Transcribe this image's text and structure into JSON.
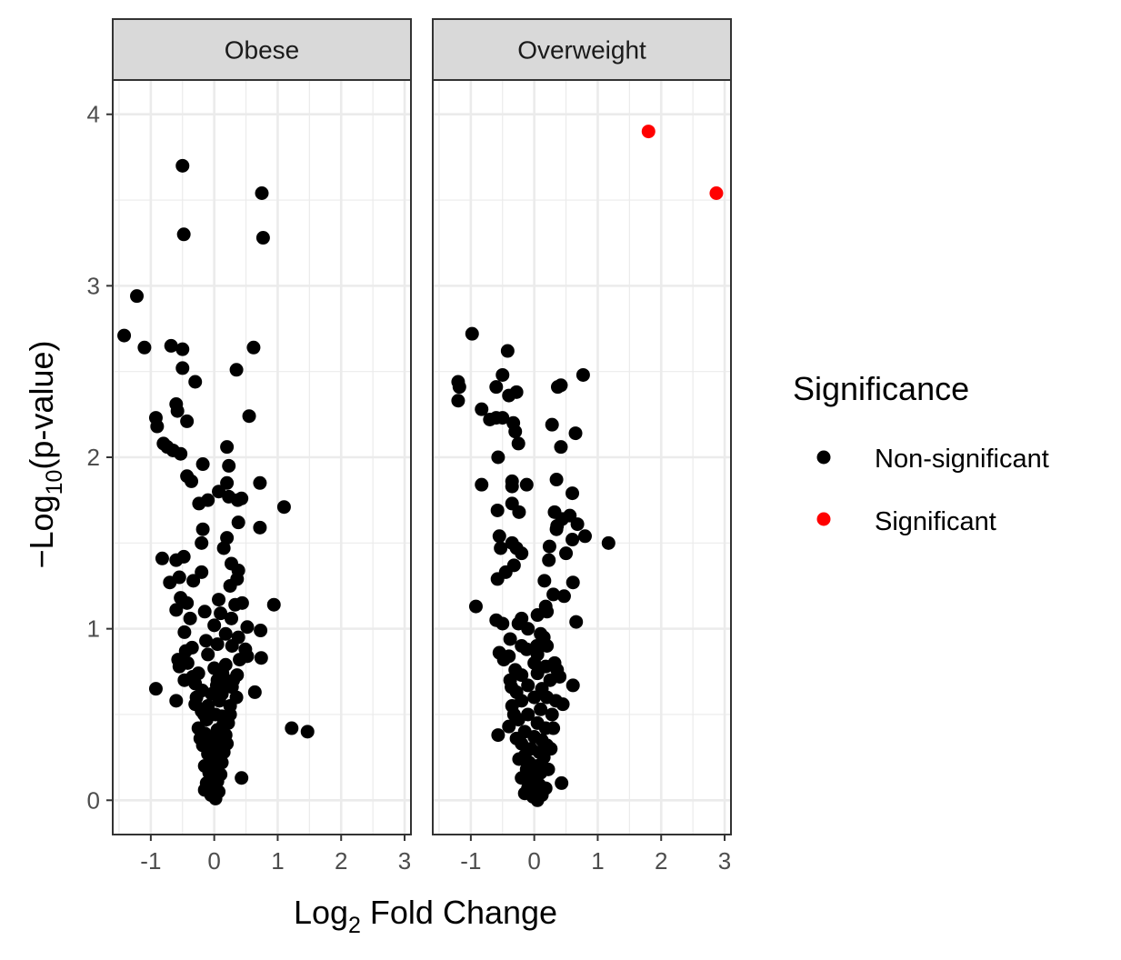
{
  "chart_data": {
    "type": "scatter",
    "title": "",
    "xlabel": {
      "base": "Log",
      "sub": "2",
      "rest": " Fold Change"
    },
    "ylabel": {
      "prefix": "−Log",
      "sub": "10",
      "rest": "(p-value)"
    },
    "xlim": [
      -1.6,
      3.1
    ],
    "ylim": [
      -0.2,
      4.2
    ],
    "x_ticks": [
      -1,
      0,
      1,
      2,
      3
    ],
    "x_tick_labels": [
      "-1",
      "0",
      "1",
      "2",
      "3"
    ],
    "y_ticks": [
      0,
      1,
      2,
      3,
      4
    ],
    "y_tick_labels": [
      "0",
      "1",
      "2",
      "3",
      "4"
    ],
    "grid": true,
    "colors": {
      "Non-significant": "#000000",
      "Significant": "#ff0000",
      "strip": "#d9d9d9",
      "grid": "#ebebeb"
    },
    "legend": {
      "title": "Significance",
      "placement": "right",
      "entries": [
        {
          "label": "Non-significant",
          "color": "#000000"
        },
        {
          "label": "Significant",
          "color": "#ff0000"
        }
      ]
    },
    "panels": [
      {
        "facet": "Obese",
        "points": [
          [
            -0.5,
            3.7
          ],
          [
            0.75,
            3.54
          ],
          [
            -0.48,
            3.3
          ],
          [
            0.77,
            3.28
          ],
          [
            -1.22,
            2.94
          ],
          [
            -1.42,
            2.71
          ],
          [
            -1.1,
            2.64
          ],
          [
            -0.68,
            2.65
          ],
          [
            -0.5,
            2.63
          ],
          [
            0.62,
            2.64
          ],
          [
            -0.5,
            2.52
          ],
          [
            0.35,
            2.51
          ],
          [
            -0.3,
            2.44
          ],
          [
            -0.6,
            2.31
          ],
          [
            -0.58,
            2.27
          ],
          [
            0.55,
            2.24
          ],
          [
            -0.92,
            2.23
          ],
          [
            -0.9,
            2.18
          ],
          [
            -0.43,
            2.21
          ],
          [
            -0.8,
            2.08
          ],
          [
            -0.74,
            2.06
          ],
          [
            -0.65,
            2.04
          ],
          [
            -0.53,
            2.02
          ],
          [
            0.2,
            2.06
          ],
          [
            -0.18,
            1.96
          ],
          [
            0.23,
            1.95
          ],
          [
            -0.43,
            1.89
          ],
          [
            -0.36,
            1.86
          ],
          [
            0.2,
            1.85
          ],
          [
            0.72,
            1.85
          ],
          [
            0.07,
            1.8
          ],
          [
            0.23,
            1.77
          ],
          [
            0.43,
            1.76
          ],
          [
            -0.1,
            1.75
          ],
          [
            0.37,
            1.75
          ],
          [
            -0.24,
            1.73
          ],
          [
            1.1,
            1.71
          ],
          [
            0.2,
            1.53
          ],
          [
            0.38,
            1.62
          ],
          [
            0.72,
            1.59
          ],
          [
            -0.18,
            1.58
          ],
          [
            -0.2,
            1.5
          ],
          [
            0.15,
            1.47
          ],
          [
            -0.82,
            1.41
          ],
          [
            -0.48,
            1.42
          ],
          [
            -0.6,
            1.4
          ],
          [
            0.27,
            1.38
          ],
          [
            0.38,
            1.34
          ],
          [
            -0.2,
            1.33
          ],
          [
            -0.55,
            1.3
          ],
          [
            -0.7,
            1.27
          ],
          [
            -0.33,
            1.28
          ],
          [
            0.36,
            1.29
          ],
          [
            0.25,
            1.25
          ],
          [
            -0.53,
            1.18
          ],
          [
            0.07,
            1.17
          ],
          [
            -0.43,
            1.15
          ],
          [
            0.33,
            1.14
          ],
          [
            0.44,
            1.15
          ],
          [
            0.94,
            1.14
          ],
          [
            -0.6,
            1.11
          ],
          [
            -0.15,
            1.1
          ],
          [
            0.1,
            1.09
          ],
          [
            0.27,
            1.06
          ],
          [
            -0.38,
            1.06
          ],
          [
            0.0,
            1.02
          ],
          [
            0.52,
            1.01
          ],
          [
            0.73,
            0.99
          ],
          [
            -0.47,
            0.98
          ],
          [
            0.18,
            0.97
          ],
          [
            0.38,
            0.95
          ],
          [
            -0.13,
            0.93
          ],
          [
            0.05,
            0.91
          ],
          [
            0.28,
            0.9
          ],
          [
            -0.35,
            0.89
          ],
          [
            -0.45,
            0.87
          ],
          [
            0.49,
            0.88
          ],
          [
            -0.1,
            0.85
          ],
          [
            0.52,
            0.84
          ],
          [
            0.74,
            0.83
          ],
          [
            0.4,
            0.82
          ],
          [
            -0.57,
            0.82
          ],
          [
            -0.55,
            0.78
          ],
          [
            -0.42,
            0.8
          ],
          [
            0.18,
            0.79
          ],
          [
            0.0,
            0.77
          ],
          [
            -0.25,
            0.74
          ],
          [
            0.13,
            0.74
          ],
          [
            0.36,
            0.73
          ],
          [
            -0.47,
            0.7
          ],
          [
            -0.3,
            0.68
          ],
          [
            0.2,
            0.68
          ],
          [
            0.04,
            0.67
          ],
          [
            -0.92,
            0.65
          ],
          [
            0.28,
            0.66
          ],
          [
            0.64,
            0.63
          ],
          [
            -0.19,
            0.64
          ],
          [
            -0.04,
            0.62
          ],
          [
            0.12,
            0.62
          ],
          [
            0.35,
            0.6
          ],
          [
            -0.6,
            0.58
          ],
          [
            0.08,
            0.58
          ],
          [
            -0.3,
            0.56
          ],
          [
            -0.1,
            0.55
          ],
          [
            0.25,
            0.55
          ],
          [
            -0.2,
            0.52
          ],
          [
            0.02,
            0.5
          ],
          [
            0.12,
            0.49
          ],
          [
            -0.12,
            0.47
          ],
          [
            0.22,
            0.45
          ],
          [
            -0.25,
            0.42
          ],
          [
            1.22,
            0.42
          ],
          [
            1.47,
            0.4
          ],
          [
            0.05,
            0.41
          ],
          [
            -0.15,
            0.39
          ],
          [
            0.18,
            0.38
          ],
          [
            -0.05,
            0.36
          ],
          [
            0.1,
            0.34
          ],
          [
            -0.18,
            0.32
          ],
          [
            0.0,
            0.3
          ],
          [
            0.15,
            0.28
          ],
          [
            -0.1,
            0.27
          ],
          [
            0.08,
            0.25
          ],
          [
            -0.05,
            0.23
          ],
          [
            0.12,
            0.22
          ],
          [
            -0.15,
            0.2
          ],
          [
            0.03,
            0.18
          ],
          [
            -0.08,
            0.16
          ],
          [
            0.1,
            0.15
          ],
          [
            -0.02,
            0.13
          ],
          [
            0.43,
            0.13
          ],
          [
            0.05,
            0.11
          ],
          [
            -0.12,
            0.1
          ],
          [
            0.0,
            0.08
          ],
          [
            -0.15,
            0.06
          ],
          [
            0.07,
            0.05
          ],
          [
            -0.05,
            0.03
          ],
          [
            0.02,
            0.01
          ],
          [
            -0.02,
            0.12
          ],
          [
            0.06,
            0.2
          ],
          [
            -0.07,
            0.26
          ],
          [
            0.2,
            0.33
          ],
          [
            -0.22,
            0.36
          ],
          [
            0.14,
            0.44
          ],
          [
            -0.16,
            0.5
          ],
          [
            0.25,
            0.5
          ],
          [
            -0.28,
            0.6
          ],
          [
            0.3,
            0.7
          ],
          [
            -0.34,
            0.72
          ],
          [
            0.05,
            0.7
          ]
        ]
      },
      {
        "facet": "Overweight",
        "points": [
          [
            -0.98,
            2.72
          ],
          [
            -0.42,
            2.62
          ],
          [
            -0.5,
            2.48
          ],
          [
            0.77,
            2.48
          ],
          [
            -1.2,
            2.44
          ],
          [
            -1.18,
            2.41
          ],
          [
            -0.6,
            2.41
          ],
          [
            0.42,
            2.42
          ],
          [
            0.37,
            2.41
          ],
          [
            -0.28,
            2.38
          ],
          [
            -0.4,
            2.36
          ],
          [
            -1.2,
            2.33
          ],
          [
            -0.83,
            2.28
          ],
          [
            -0.6,
            2.23
          ],
          [
            -0.5,
            2.23
          ],
          [
            -0.7,
            2.22
          ],
          [
            -0.33,
            2.2
          ],
          [
            0.28,
            2.19
          ],
          [
            -0.3,
            2.15
          ],
          [
            0.65,
            2.14
          ],
          [
            -0.25,
            2.08
          ],
          [
            0.42,
            2.06
          ],
          [
            -0.57,
            2.0
          ],
          [
            0.35,
            1.87
          ],
          [
            -0.83,
            1.84
          ],
          [
            -0.35,
            1.86
          ],
          [
            -0.35,
            1.83
          ],
          [
            -0.12,
            1.84
          ],
          [
            0.6,
            1.79
          ],
          [
            -0.35,
            1.73
          ],
          [
            -0.58,
            1.69
          ],
          [
            -0.24,
            1.68
          ],
          [
            0.32,
            1.68
          ],
          [
            0.44,
            1.64
          ],
          [
            0.56,
            1.66
          ],
          [
            0.68,
            1.61
          ],
          [
            0.36,
            1.6
          ],
          [
            0.35,
            1.58
          ],
          [
            0.8,
            1.54
          ],
          [
            -0.55,
            1.54
          ],
          [
            0.6,
            1.52
          ],
          [
            1.17,
            1.5
          ],
          [
            -0.35,
            1.5
          ],
          [
            -0.28,
            1.47
          ],
          [
            -0.53,
            1.47
          ],
          [
            0.24,
            1.48
          ],
          [
            -0.2,
            1.44
          ],
          [
            0.5,
            1.44
          ],
          [
            0.23,
            1.4
          ],
          [
            -0.32,
            1.37
          ],
          [
            -0.45,
            1.33
          ],
          [
            -0.58,
            1.29
          ],
          [
            0.16,
            1.28
          ],
          [
            0.61,
            1.27
          ],
          [
            0.3,
            1.2
          ],
          [
            0.47,
            1.19
          ],
          [
            -0.92,
            1.13
          ],
          [
            0.18,
            1.13
          ],
          [
            0.2,
            1.1
          ],
          [
            0.05,
            1.08
          ],
          [
            -0.6,
            1.05
          ],
          [
            -0.2,
            1.06
          ],
          [
            -0.5,
            1.03
          ],
          [
            -0.25,
            1.03
          ],
          [
            0.66,
            1.04
          ],
          [
            -0.1,
            1.0
          ],
          [
            0.1,
            0.97
          ],
          [
            0.15,
            0.95
          ],
          [
            -0.38,
            0.94
          ],
          [
            -0.2,
            0.9
          ],
          [
            0.2,
            0.9
          ],
          [
            -0.12,
            0.88
          ],
          [
            -0.55,
            0.86
          ],
          [
            0.05,
            0.85
          ],
          [
            -0.48,
            0.82
          ],
          [
            0.32,
            0.8
          ],
          [
            0.18,
            0.78
          ],
          [
            -0.3,
            0.76
          ],
          [
            0.05,
            0.74
          ],
          [
            -0.2,
            0.73
          ],
          [
            0.4,
            0.72
          ],
          [
            -0.38,
            0.7
          ],
          [
            0.25,
            0.7
          ],
          [
            0.61,
            0.67
          ],
          [
            -0.1,
            0.67
          ],
          [
            0.12,
            0.65
          ],
          [
            -0.28,
            0.63
          ],
          [
            0.0,
            0.6
          ],
          [
            0.2,
            0.6
          ],
          [
            -0.2,
            0.58
          ],
          [
            0.45,
            0.56
          ],
          [
            -0.35,
            0.55
          ],
          [
            0.1,
            0.53
          ],
          [
            -0.1,
            0.5
          ],
          [
            0.28,
            0.5
          ],
          [
            -0.25,
            0.47
          ],
          [
            0.05,
            0.45
          ],
          [
            -0.4,
            0.43
          ],
          [
            0.18,
            0.42
          ],
          [
            -0.15,
            0.4
          ],
          [
            -0.57,
            0.38
          ],
          [
            0.0,
            0.37
          ],
          [
            0.12,
            0.35
          ],
          [
            -0.2,
            0.33
          ],
          [
            0.2,
            0.32
          ],
          [
            -0.05,
            0.3
          ],
          [
            0.08,
            0.28
          ],
          [
            -0.15,
            0.26
          ],
          [
            0.15,
            0.25
          ],
          [
            -0.08,
            0.22
          ],
          [
            0.05,
            0.2
          ],
          [
            -0.12,
            0.18
          ],
          [
            0.1,
            0.16
          ],
          [
            0.0,
            0.14
          ],
          [
            -0.05,
            0.12
          ],
          [
            0.43,
            0.1
          ],
          [
            0.08,
            0.09
          ],
          [
            -0.1,
            0.07
          ],
          [
            0.02,
            0.05
          ],
          [
            0.12,
            0.03
          ],
          [
            -0.02,
            0.02
          ],
          [
            0.05,
            0.0
          ],
          [
            -0.15,
            0.04
          ],
          [
            0.18,
            0.07
          ],
          [
            -0.2,
            0.13
          ],
          [
            0.22,
            0.18
          ],
          [
            -0.24,
            0.24
          ],
          [
            0.26,
            0.3
          ],
          [
            -0.28,
            0.36
          ],
          [
            0.3,
            0.42
          ],
          [
            -0.32,
            0.5
          ],
          [
            0.34,
            0.58
          ],
          [
            -0.36,
            0.66
          ],
          [
            0.36,
            0.76
          ],
          [
            -0.4,
            0.84
          ],
          [
            0.0,
            0.8
          ],
          [
            0.04,
            0.9
          ]
        ],
        "significant_points": [
          [
            1.8,
            3.9
          ],
          [
            2.87,
            3.54
          ]
        ]
      }
    ]
  }
}
